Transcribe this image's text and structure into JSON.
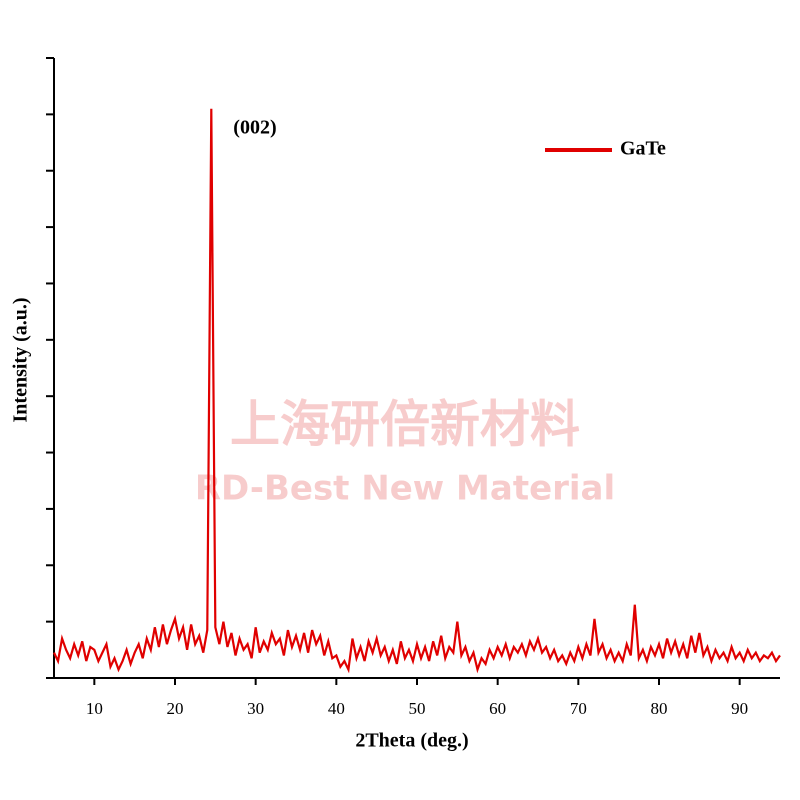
{
  "chart_data": {
    "type": "line",
    "watermark": [
      "上海研倍新材料",
      "RD-Best New Material"
    ],
    "xlabel": "2Theta (deg.)",
    "ylabel": "Intensity (a.u.)",
    "annotation": {
      "text": "(002)",
      "x": 24.5,
      "y": 10.1
    },
    "legend": "upper right",
    "xlim": [
      5,
      95
    ],
    "xticks": [
      10,
      20,
      30,
      40,
      50,
      60,
      70,
      80,
      90
    ],
    "ylim": [
      0,
      11
    ],
    "yticks": [
      0,
      1,
      2,
      3,
      4,
      5,
      6,
      7,
      8,
      9,
      10,
      11
    ],
    "x": [
      5,
      5.5,
      6,
      6.5,
      7,
      7.5,
      8,
      8.5,
      9,
      9.5,
      10,
      10.5,
      11,
      11.5,
      12,
      12.5,
      13,
      13.5,
      14,
      14.5,
      15,
      15.5,
      16,
      16.5,
      17,
      17.5,
      18,
      18.5,
      19,
      19.5,
      20,
      20.5,
      21,
      21.5,
      22,
      22.5,
      23,
      23.5,
      24,
      24.5,
      25,
      25.5,
      26,
      26.5,
      27,
      27.5,
      28,
      28.5,
      29,
      29.5,
      30,
      30.5,
      31,
      31.5,
      32,
      32.5,
      33,
      33.5,
      34,
      34.5,
      35,
      35.5,
      36,
      36.5,
      37,
      37.5,
      38,
      38.5,
      39,
      39.5,
      40,
      40.5,
      41,
      41.5,
      42,
      42.5,
      43,
      43.5,
      44,
      44.5,
      45,
      45.5,
      46,
      46.5,
      47,
      47.5,
      48,
      48.5,
      49,
      49.5,
      50,
      50.5,
      51,
      51.5,
      52,
      52.5,
      53,
      53.5,
      54,
      54.5,
      55,
      55.5,
      56,
      56.5,
      57,
      57.5,
      58,
      58.5,
      59,
      59.5,
      60,
      60.5,
      61,
      61.5,
      62,
      62.5,
      63,
      63.5,
      64,
      64.5,
      65,
      65.5,
      66,
      66.5,
      67,
      67.5,
      68,
      68.5,
      69,
      69.5,
      70,
      70.5,
      71,
      71.5,
      72,
      72.5,
      73,
      73.5,
      74,
      74.5,
      75,
      75.5,
      76,
      76.5,
      77,
      77.5,
      78,
      78.5,
      79,
      79.5,
      80,
      80.5,
      81,
      81.5,
      82,
      82.5,
      83,
      83.5,
      84,
      84.5,
      85,
      85.5,
      86,
      86.5,
      87,
      87.5,
      88,
      88.5,
      89,
      89.5,
      90,
      90.5,
      91,
      91.5,
      92,
      92.5,
      93,
      93.5,
      94,
      94.5,
      95
    ],
    "series": [
      {
        "name": "GaTe",
        "color": "#e00000",
        "values": [
          0.45,
          0.3,
          0.7,
          0.5,
          0.35,
          0.6,
          0.4,
          0.65,
          0.3,
          0.55,
          0.5,
          0.3,
          0.45,
          0.6,
          0.2,
          0.35,
          0.15,
          0.3,
          0.5,
          0.25,
          0.45,
          0.6,
          0.35,
          0.7,
          0.5,
          0.9,
          0.55,
          0.95,
          0.6,
          0.85,
          1.05,
          0.7,
          0.9,
          0.5,
          0.95,
          0.6,
          0.75,
          0.45,
          0.85,
          10.1,
          0.9,
          0.6,
          1.0,
          0.55,
          0.8,
          0.4,
          0.7,
          0.5,
          0.6,
          0.35,
          0.9,
          0.45,
          0.65,
          0.5,
          0.8,
          0.6,
          0.7,
          0.4,
          0.85,
          0.55,
          0.75,
          0.5,
          0.8,
          0.45,
          0.85,
          0.6,
          0.75,
          0.4,
          0.65,
          0.35,
          0.4,
          0.2,
          0.3,
          0.15,
          0.7,
          0.35,
          0.55,
          0.3,
          0.65,
          0.45,
          0.7,
          0.4,
          0.55,
          0.3,
          0.5,
          0.25,
          0.65,
          0.35,
          0.5,
          0.3,
          0.6,
          0.35,
          0.55,
          0.3,
          0.65,
          0.4,
          0.75,
          0.35,
          0.55,
          0.45,
          1.0,
          0.4,
          0.55,
          0.3,
          0.45,
          0.15,
          0.35,
          0.25,
          0.5,
          0.35,
          0.55,
          0.4,
          0.6,
          0.35,
          0.55,
          0.45,
          0.6,
          0.4,
          0.65,
          0.5,
          0.7,
          0.45,
          0.55,
          0.35,
          0.5,
          0.3,
          0.4,
          0.25,
          0.45,
          0.3,
          0.55,
          0.35,
          0.6,
          0.4,
          1.05,
          0.45,
          0.6,
          0.35,
          0.5,
          0.3,
          0.45,
          0.3,
          0.6,
          0.4,
          1.3,
          0.35,
          0.5,
          0.3,
          0.55,
          0.4,
          0.6,
          0.35,
          0.7,
          0.45,
          0.65,
          0.4,
          0.6,
          0.35,
          0.75,
          0.45,
          0.8,
          0.4,
          0.55,
          0.3,
          0.5,
          0.35,
          0.45,
          0.3,
          0.55,
          0.35,
          0.45,
          0.3,
          0.5,
          0.35,
          0.45,
          0.3,
          0.4,
          0.35,
          0.45,
          0.3,
          0.4
        ]
      }
    ]
  }
}
